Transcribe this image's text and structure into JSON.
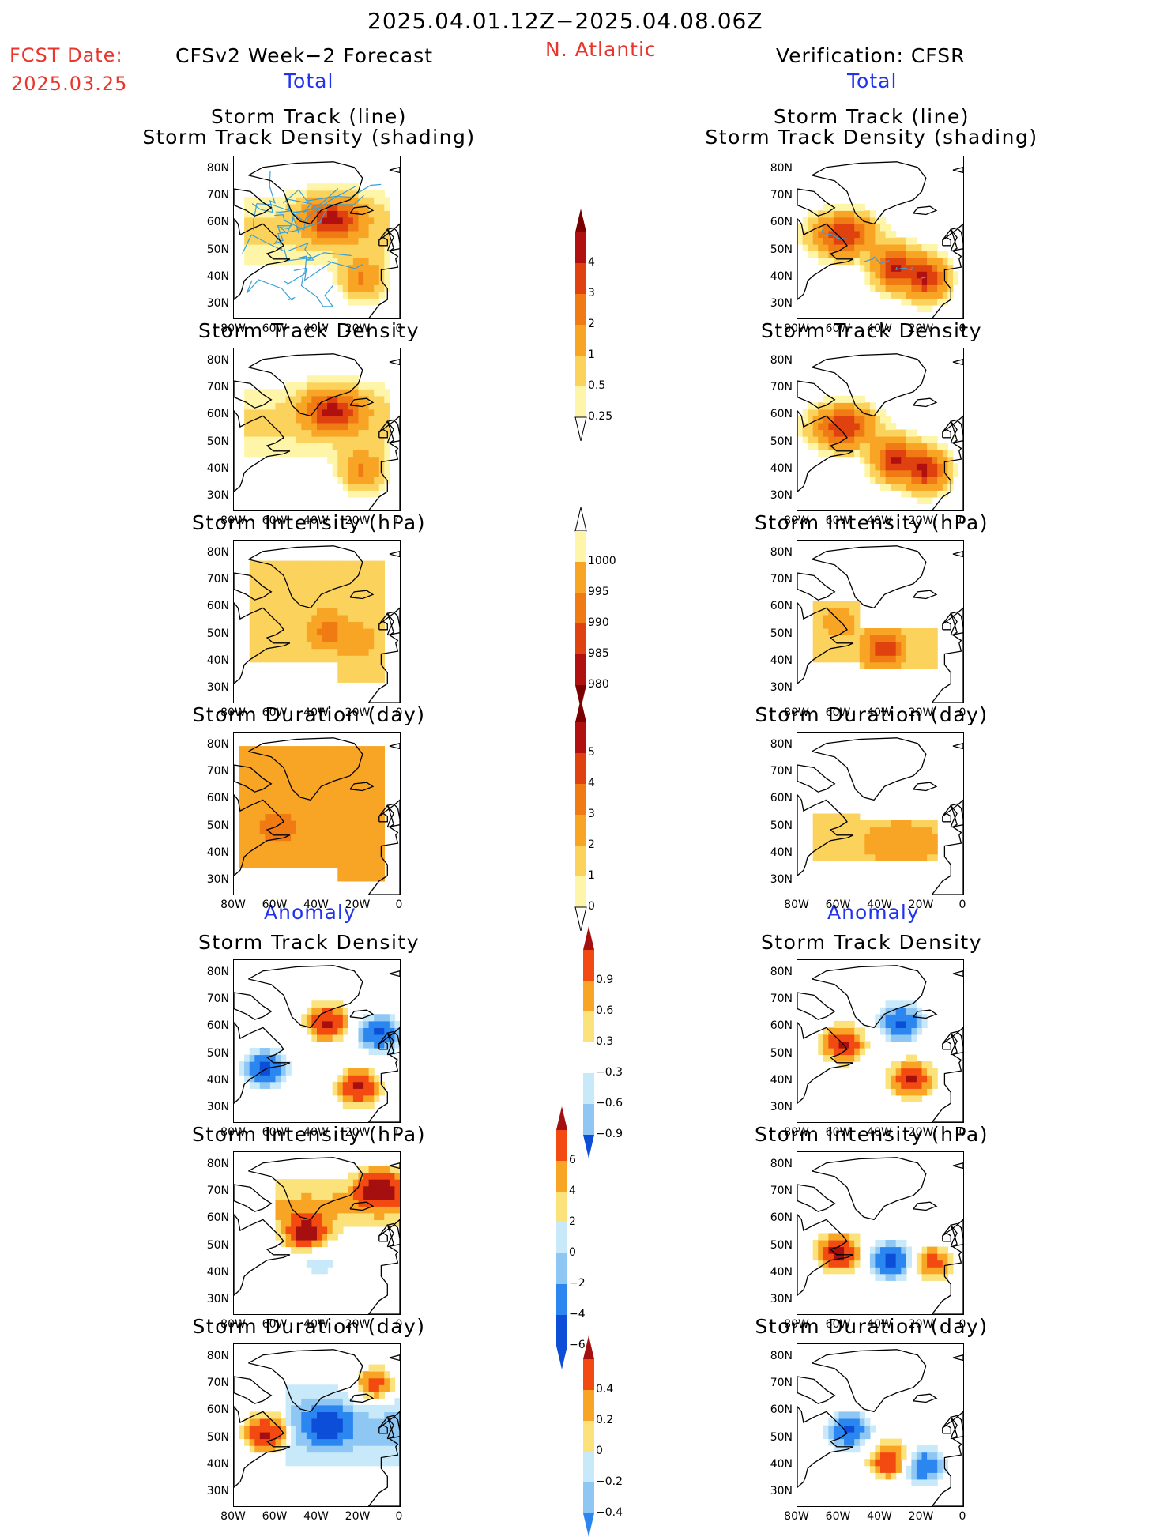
{
  "header": {
    "date_range": "2025.04.01.12Z−2025.04.08.06Z",
    "fcst_label": "FCST Date:",
    "fcst_date": "2025.03.25",
    "forecast_title": "CFSv2 Week−2 Forecast",
    "region": "N. Atlantic",
    "verification_title": "Verification: CFSR"
  },
  "sections": {
    "total_left": "Total",
    "total_right": "Total",
    "anomaly_left": "Anomaly",
    "anomaly_right": "Anomaly"
  },
  "panel_titles": {
    "track_line": "Storm Track (line)",
    "track_shading": "Storm Track Density (shading)",
    "density": "Storm Track Density",
    "intensity": "Storm Intensity (hPa)",
    "duration": "Storm Duration (day)"
  },
  "axes": {
    "lat_ticks": [
      "80N",
      "70N",
      "60N",
      "50N",
      "40N",
      "30N"
    ],
    "lon_ticks": [
      "80W",
      "60W",
      "40W",
      "20W",
      "0"
    ]
  },
  "colorbars": {
    "density_total": [
      "4",
      "3",
      "2",
      "1",
      "0.5",
      "0.25"
    ],
    "intensity_total": [
      "1000",
      "995",
      "990",
      "985",
      "980"
    ],
    "duration_total": [
      "5",
      "4",
      "3",
      "2",
      "1",
      "0"
    ],
    "density_anom": [
      "0.9",
      "0.6",
      "0.3",
      "−0.3",
      "−0.6",
      "−0.9"
    ],
    "intensity_anom": [
      "6",
      "4",
      "2",
      "0",
      "−2",
      "−4",
      "−6"
    ],
    "duration_anom": [
      "0.4",
      "0.2",
      "0",
      "−0.2",
      "−0.4"
    ]
  },
  "colors": {
    "title_red": "#e8362c",
    "title_blue": "#2233ee",
    "seq": [
      "#fff5a8",
      "#fbd35c",
      "#f8a424",
      "#f07a13",
      "#e0420f",
      "#b01010",
      "#7a0000"
    ],
    "div": [
      "#0c4ed8",
      "#2b86f0",
      "#8ec6f4",
      "#c7e9f9",
      "#ffffff",
      "#fbe27a",
      "#f8a424",
      "#f24a10",
      "#a50f0f"
    ],
    "track_line": "#3aa0d8"
  },
  "chart_data": [
    {
      "type": "heatmap",
      "title": "Storm Track (line) / Storm Track Density (shading)",
      "side": "CFSv2 Week−2 Forecast",
      "section": "Total",
      "features": [
        {
          "lon": -32,
          "lat": 62,
          "peak": 4
        },
        {
          "lon": -18,
          "lat": 40,
          "peak": 2
        }
      ],
      "track_lines": true
    },
    {
      "type": "heatmap",
      "title": "Storm Track (line) / Storm Track Density (shading)",
      "side": "Verification: CFSR",
      "section": "Total",
      "features": [
        {
          "lon": -58,
          "lat": 56,
          "peak": 4
        },
        {
          "lon": -33,
          "lat": 44,
          "peak": 4
        },
        {
          "lon": -18,
          "lat": 40,
          "peak": 4
        }
      ],
      "track_lines": true
    },
    {
      "type": "heatmap",
      "title": "Storm Track Density",
      "side": "CFSv2 Week−2 Forecast",
      "section": "Total",
      "features": [
        {
          "lon": -32,
          "lat": 62,
          "peak": 4
        },
        {
          "lon": -18,
          "lat": 40,
          "peak": 2
        }
      ]
    },
    {
      "type": "heatmap",
      "title": "Storm Track Density",
      "side": "Verification: CFSR",
      "section": "Total",
      "features": [
        {
          "lon": -58,
          "lat": 56,
          "peak": 4
        },
        {
          "lon": -33,
          "lat": 44,
          "peak": 4
        },
        {
          "lon": -18,
          "lat": 40,
          "peak": 4
        }
      ]
    },
    {
      "type": "heatmap",
      "title": "Storm Intensity (hPa)",
      "side": "CFSv2 Week−2 Forecast",
      "section": "Total",
      "units": "hPa",
      "features": [
        {
          "lon": -35,
          "lat": 52,
          "value": 988
        },
        {
          "lon": -20,
          "lat": 48,
          "value": 992
        }
      ]
    },
    {
      "type": "heatmap",
      "title": "Storm Intensity (hPa)",
      "side": "Verification: CFSR",
      "section": "Total",
      "units": "hPa",
      "features": [
        {
          "lon": -38,
          "lat": 45,
          "value": 981
        },
        {
          "lon": -60,
          "lat": 55,
          "value": 992
        }
      ]
    },
    {
      "type": "heatmap",
      "title": "Storm Duration (day)",
      "side": "CFSv2 Week−2 Forecast",
      "section": "Total",
      "units": "day",
      "features": [
        {
          "lon": -40,
          "lat": 55,
          "value": 2.5
        },
        {
          "lon": -60,
          "lat": 50,
          "value": 3.5
        }
      ]
    },
    {
      "type": "heatmap",
      "title": "Storm Duration (day)",
      "side": "Verification: CFSR",
      "section": "Total",
      "units": "day",
      "features": [
        {
          "lon": -30,
          "lat": 44,
          "value": 2.5
        }
      ]
    },
    {
      "type": "heatmap",
      "title": "Storm Track Density",
      "side": "CFSv2 Week−2 Forecast",
      "section": "Anomaly",
      "features": [
        {
          "lon": -35,
          "lat": 62,
          "value": 0.9
        },
        {
          "lon": -20,
          "lat": 38,
          "value": 0.9
        },
        {
          "lon": -65,
          "lat": 45,
          "value": -0.9
        },
        {
          "lon": -10,
          "lat": 58,
          "value": -0.9
        }
      ]
    },
    {
      "type": "heatmap",
      "title": "Storm Track Density",
      "side": "Verification: CFSR",
      "section": "Anomaly",
      "features": [
        {
          "lon": -58,
          "lat": 54,
          "value": 0.9
        },
        {
          "lon": -25,
          "lat": 41,
          "value": 0.9
        },
        {
          "lon": -30,
          "lat": 62,
          "value": -0.9
        }
      ]
    },
    {
      "type": "heatmap",
      "title": "Storm Intensity (hPa)",
      "side": "CFSv2 Week−2 Forecast",
      "section": "Anomaly",
      "units": "hPa",
      "features": [
        {
          "lon": -10,
          "lat": 72,
          "value": 6
        },
        {
          "lon": -45,
          "lat": 55,
          "value": 6
        },
        {
          "lon": -40,
          "lat": 45,
          "value": -2
        }
      ]
    },
    {
      "type": "heatmap",
      "title": "Storm Intensity (hPa)",
      "side": "Verification: CFSR",
      "section": "Anomaly",
      "units": "hPa",
      "features": [
        {
          "lon": -60,
          "lat": 48,
          "value": 6
        },
        {
          "lon": -35,
          "lat": 45,
          "value": -6
        },
        {
          "lon": -15,
          "lat": 44,
          "value": 4
        }
      ]
    },
    {
      "type": "heatmap",
      "title": "Storm Duration (day)",
      "side": "CFSv2 Week−2 Forecast",
      "section": "Anomaly",
      "units": "day",
      "features": [
        {
          "lon": -65,
          "lat": 52,
          "value": 0.4
        },
        {
          "lon": -35,
          "lat": 55,
          "value": -0.4
        },
        {
          "lon": -12,
          "lat": 70,
          "value": 0.4
        }
      ]
    },
    {
      "type": "heatmap",
      "title": "Storm Duration (day)",
      "side": "Verification: CFSR",
      "section": "Anomaly",
      "units": "day",
      "features": [
        {
          "lon": -55,
          "lat": 53,
          "value": -0.4
        },
        {
          "lon": -35,
          "lat": 42,
          "value": 0.4
        },
        {
          "lon": -20,
          "lat": 40,
          "value": -0.4
        }
      ]
    }
  ]
}
